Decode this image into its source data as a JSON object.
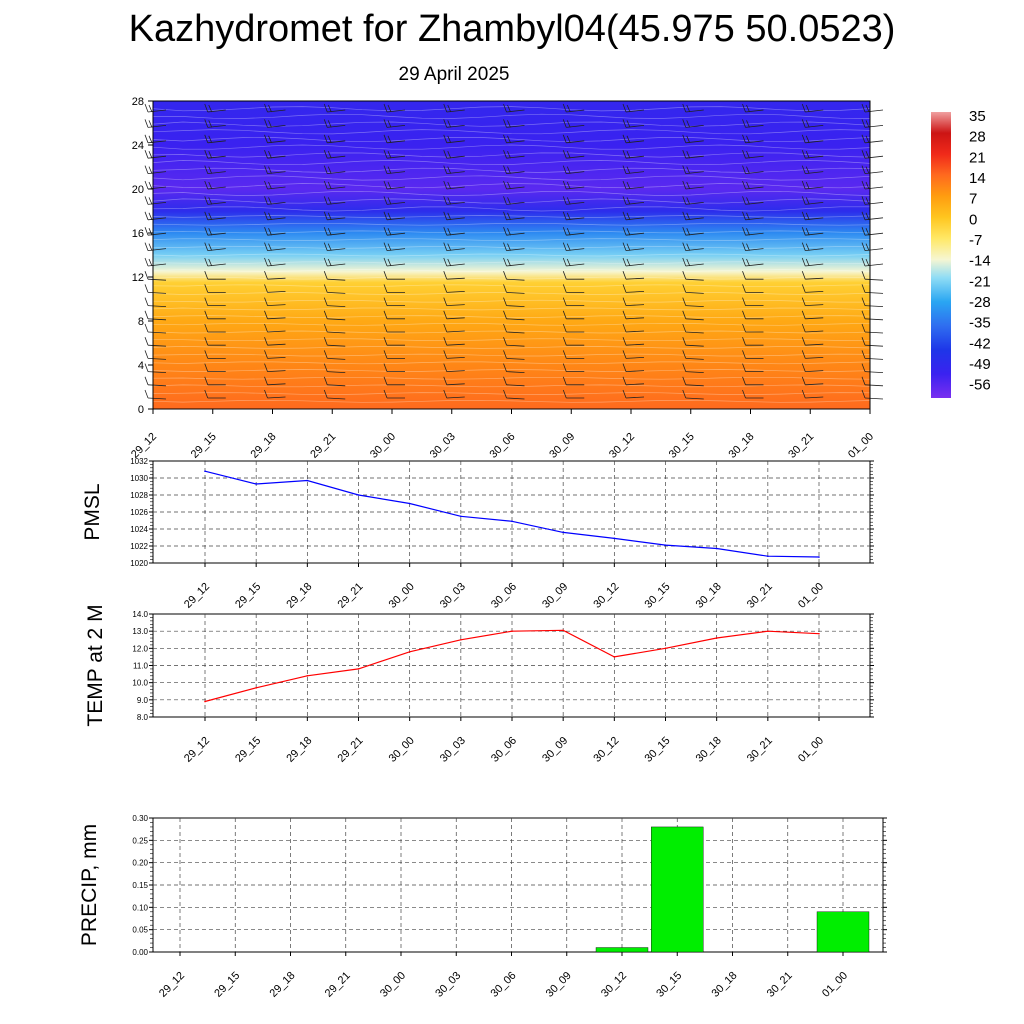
{
  "title": "Kazhydromet for Zhambyl04(45.975 50.0523)",
  "subtitle": "29 April 2025",
  "time_labels": [
    "29_12",
    "29_15",
    "29_18",
    "29_21",
    "30_00",
    "30_03",
    "30_06",
    "30_09",
    "30_12",
    "30_15",
    "30_18",
    "30_21",
    "01_00"
  ],
  "chart_data": [
    {
      "type": "heatmap",
      "title": "Kazhydromet for Zhambyl04(45.975 50.0523)",
      "subtitle": "29 April 2025",
      "x": [
        "29_12",
        "29_15",
        "29_18",
        "29_21",
        "30_00",
        "30_03",
        "30_06",
        "30_09",
        "30_12",
        "30_15",
        "30_18",
        "30_21",
        "01_00"
      ],
      "y_ticks": [
        0,
        4,
        8,
        12,
        16,
        20,
        24,
        28
      ],
      "ylim": [
        0,
        28
      ],
      "colorbar_labels": [
        "35",
        "28",
        "21",
        "14",
        "7",
        "0",
        "-7",
        "-14",
        "-21",
        "-28",
        "-35",
        "-42",
        "-49",
        "-56"
      ],
      "temperature_profile": [
        {
          "level": 0,
          "value": 14
        },
        {
          "level": 4,
          "value": 10
        },
        {
          "level": 8,
          "value": 5
        },
        {
          "level": 11.5,
          "value": -2
        },
        {
          "level": 12.5,
          "value": -14
        },
        {
          "level": 14,
          "value": -22
        },
        {
          "level": 16,
          "value": -32
        },
        {
          "level": 18,
          "value": -48
        },
        {
          "level": 20,
          "value": -56
        },
        {
          "level": 24,
          "value": -52
        },
        {
          "level": 28,
          "value": -50
        }
      ],
      "overlay": "wind barbs"
    },
    {
      "type": "line",
      "ylabel": "PMSL",
      "x": [
        "29_12",
        "29_15",
        "29_18",
        "29_21",
        "30_00",
        "30_03",
        "30_06",
        "30_09",
        "30_12",
        "30_15",
        "30_18",
        "30_21",
        "01_00"
      ],
      "values": [
        1030.8,
        1029.3,
        1029.7,
        1028.0,
        1027.0,
        1025.5,
        1024.9,
        1023.6,
        1022.9,
        1022.1,
        1021.7,
        1020.8,
        1020.7
      ],
      "ylim": [
        1020,
        1032
      ],
      "y_ticks": [
        "1020",
        "1022",
        "1024",
        "1026",
        "1028",
        "1030",
        "1032"
      ],
      "color": "#0000ff",
      "grid": true
    },
    {
      "type": "line",
      "ylabel": "TEMP at 2 M",
      "x": [
        "29_12",
        "29_15",
        "29_18",
        "29_21",
        "30_00",
        "30_03",
        "30_06",
        "30_09",
        "30_12",
        "30_15",
        "30_18",
        "30_21",
        "01_00"
      ],
      "values": [
        8.9,
        9.7,
        10.4,
        10.8,
        11.8,
        12.5,
        13.0,
        13.05,
        11.5,
        12.0,
        12.6,
        13.0,
        12.85
      ],
      "ylim": [
        8,
        14
      ],
      "y_ticks": [
        "8.0",
        "9.0",
        "10.0",
        "11.0",
        "12.0",
        "13.0",
        "14.0"
      ],
      "color": "#ff0000",
      "grid": true
    },
    {
      "type": "bar",
      "ylabel": "PRECIP, mm",
      "categories": [
        "29_12",
        "29_15",
        "29_18",
        "29_21",
        "30_00",
        "30_03",
        "30_06",
        "30_09",
        "30_12",
        "30_15",
        "30_18",
        "30_21",
        "01_00"
      ],
      "values": [
        0,
        0,
        0,
        0,
        0,
        0,
        0,
        0,
        0.01,
        0.28,
        0,
        0,
        0.09
      ],
      "ylim": [
        0,
        0.3
      ],
      "y_ticks": [
        "0.00",
        "0.05",
        "0.10",
        "0.15",
        "0.20",
        "0.25",
        "0.30"
      ],
      "color": "#00ee00",
      "grid": true
    }
  ]
}
